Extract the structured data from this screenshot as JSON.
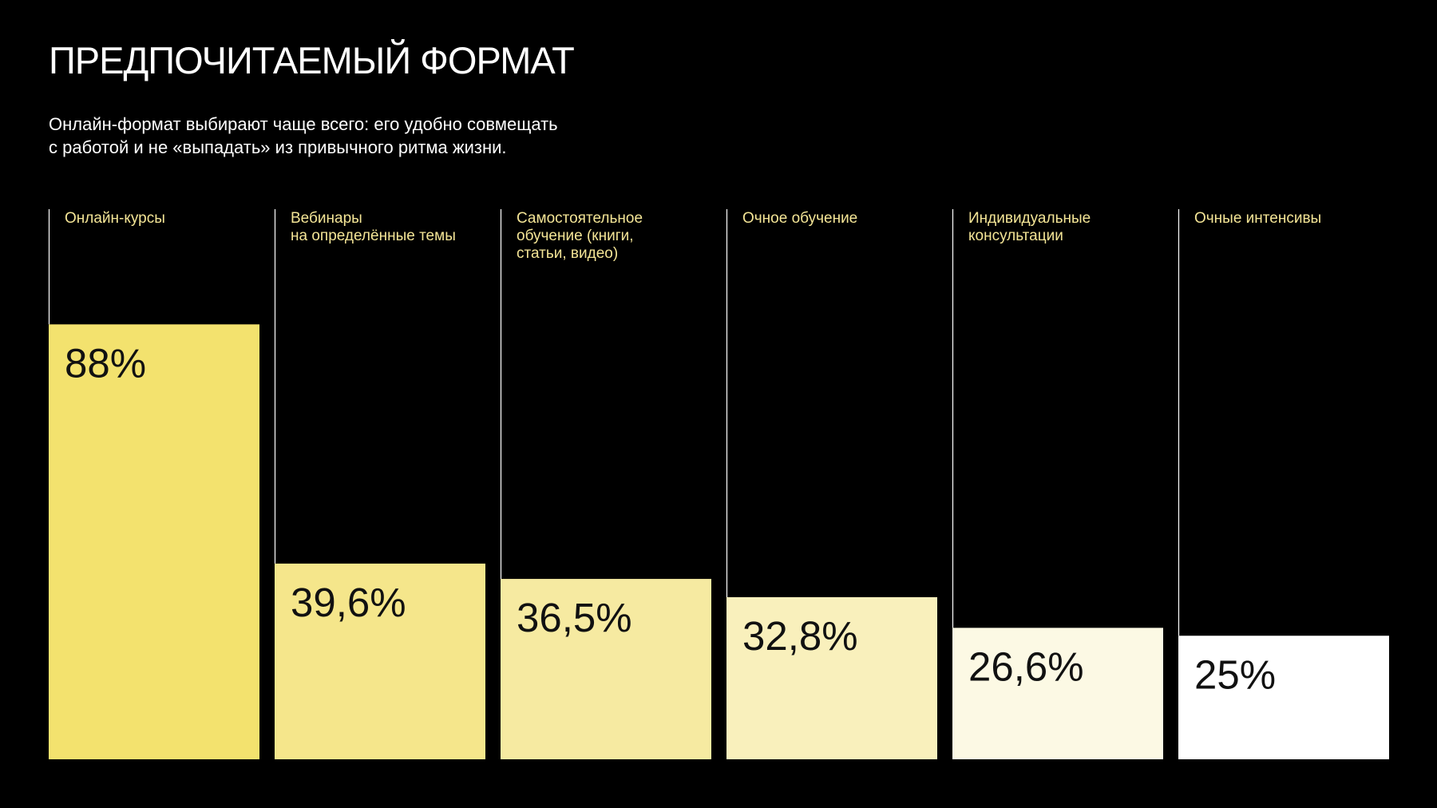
{
  "title": "ПРЕДПОЧИТАЕМЫЙ ФОРМАТ",
  "subtitle_lines": [
    "Онлайн-формат выбирают чаще всего: его удобно совмещать",
    "с работой и не «выпадать» из привычного ритма жизни."
  ],
  "colors": {
    "background": "#000000",
    "text": "#ffffff",
    "category_label": "#f4e596",
    "value_text": "#111111",
    "divider": "#ffffff"
  },
  "chart_data": {
    "type": "bar",
    "title": "ПРЕДПОЧИТАЕМЫЙ ФОРМАТ",
    "ylim": [
      0,
      100
    ],
    "grid": false,
    "legend": "none",
    "categories": [
      [
        "Онлайн-курсы"
      ],
      [
        "Вебинары",
        "на определённые темы"
      ],
      [
        "Самостоятельное",
        "обучение (книги,",
        "статьи, видео)"
      ],
      [
        "Очное обучение"
      ],
      [
        "Индивидуальные",
        "консультации"
      ],
      [
        "Очные интенсивы"
      ]
    ],
    "values": [
      88,
      39.6,
      36.5,
      32.8,
      26.6,
      25
    ],
    "value_labels": [
      "88%",
      "39,6%",
      "36,5%",
      "32,8%",
      "26,6%",
      "25%"
    ],
    "bar_colors": [
      "#f3e26e",
      "#f5e68b",
      "#f6eaa1",
      "#f9f0bc",
      "#fcf9e4",
      "#ffffff"
    ]
  }
}
